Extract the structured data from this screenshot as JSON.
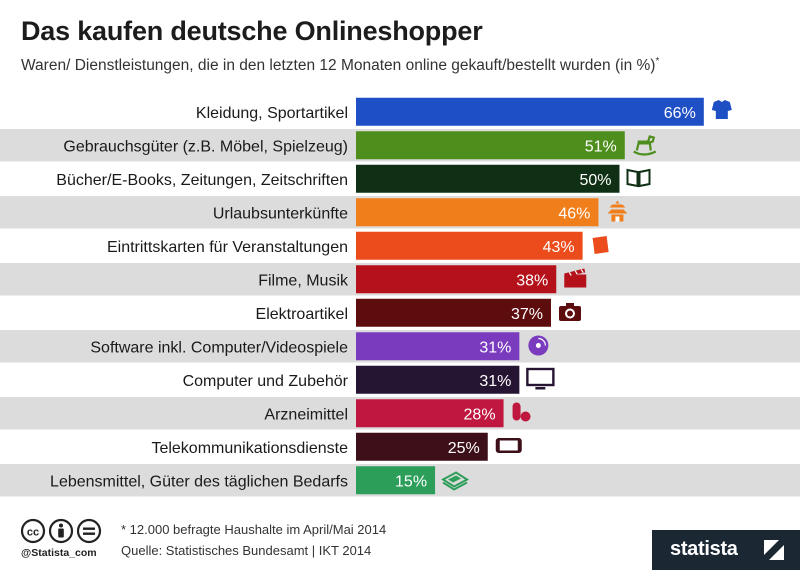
{
  "header": {
    "title": "Das kaufen deutsche Onlineshopper",
    "subtitle": "Waren/ Dienstleistungen, die in den letzten 12 Monaten online gekauft/bestellt wurden (in %)",
    "subtitle_mark": "*"
  },
  "chart_data": {
    "type": "bar",
    "orientation": "horizontal",
    "title": "Das kaufen deutsche Onlineshopper",
    "subtitle": "Waren/ Dienstleistungen, die in den letzten 12 Monaten online gekauft/bestellt wurden (in %)",
    "unit": "%",
    "xlim": [
      0,
      100
    ],
    "grid": false,
    "categories": [
      "Kleidung, Sportartikel",
      "Gebrauchsgüter (z.B. Möbel, Spielzeug)",
      "Bücher/E-Books, Zeitungen, Zeitschriften",
      "Urlaubsunterkünfte",
      "Eintrittskarten für Veranstaltungen",
      "Filme, Musik",
      "Elektroartikel",
      "Software inkl. Computer/Videospiele",
      "Computer und Zubehör",
      "Arzneimittel",
      "Telekommunikationsdienste",
      "Lebensmittel, Güter des täglichen Bedarfs"
    ],
    "values": [
      66,
      51,
      50,
      46,
      43,
      38,
      37,
      31,
      31,
      28,
      25,
      15
    ],
    "value_labels": [
      "66%",
      "51%",
      "50%",
      "46%",
      "43%",
      "38%",
      "37%",
      "31%",
      "31%",
      "28%",
      "25%",
      "15%"
    ],
    "colors": [
      "#1f4fc4",
      "#4e8e1c",
      "#0f3014",
      "#f07e1a",
      "#ec4c1c",
      "#b4111a",
      "#5e0d0f",
      "#7a3bbf",
      "#261433",
      "#c01740",
      "#3d0f19",
      "#2d9e5a"
    ],
    "icons": [
      "shirt-icon",
      "rocking-horse-icon",
      "book-icon",
      "pagoda-icon",
      "ticket-icon",
      "clapperboard-icon",
      "camera-icon",
      "disc-icon",
      "monitor-icon",
      "pill-icon",
      "phone-icon",
      "food-icon"
    ]
  },
  "footer": {
    "note": "* 12.000 befragte Haushalte im April/Mai 2014",
    "source": "Quelle: Statistisches Bundesamt | IKT 2014",
    "handle": "@Statista_com",
    "brand": "statista"
  }
}
